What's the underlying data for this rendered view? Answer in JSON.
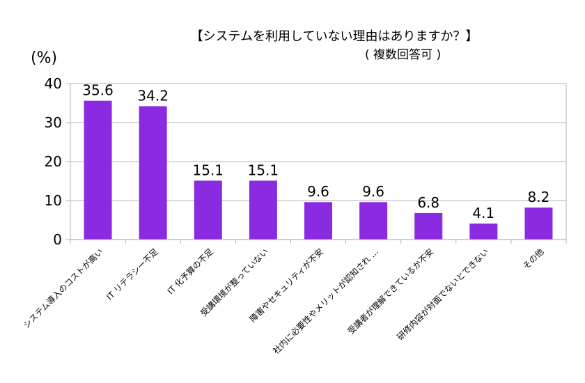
{
  "chart_data": {
    "type": "bar",
    "title": "【システムを利用していない理由はありますか？】",
    "subtitle": "( 複数回答可 )",
    "ylabel": "(%)",
    "xlabel": "",
    "ylim": [
      0,
      40
    ],
    "yticks": [
      0,
      10,
      20,
      30,
      40
    ],
    "grid": true,
    "legend": "none",
    "bar_color": "#8a2be2",
    "categories": [
      "システム導入のコストが高い",
      "IT リテラシー不足",
      "IT 化予算の不足",
      "受講環境が整っていない",
      "障害やセキュリティが不安",
      "社内に必要性やメリットが認知され …",
      "受講者が理解できているか不安",
      "研修内容が対面でないとできない",
      "その他"
    ],
    "values": [
      35.6,
      34.2,
      15.1,
      15.1,
      9.6,
      9.6,
      6.8,
      4.1,
      8.2
    ],
    "value_labels": [
      "35.6",
      "34.2",
      "15.1",
      "15.1",
      "9.6",
      "9.6",
      "6.8",
      "4.1",
      "8.2"
    ]
  }
}
